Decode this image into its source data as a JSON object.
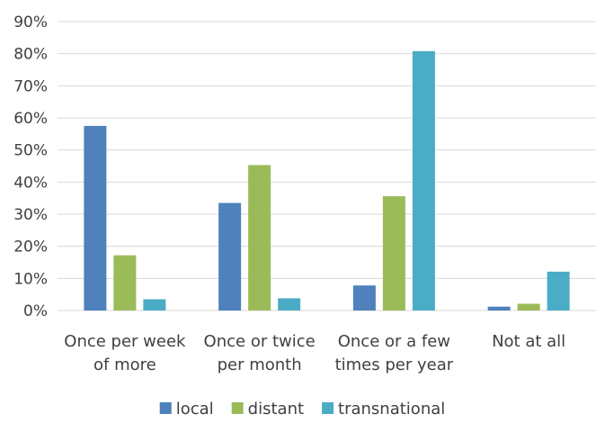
{
  "chart_data": {
    "type": "bar",
    "categories": [
      [
        "Once per week",
        "of more"
      ],
      [
        "Once or twice",
        "per month"
      ],
      [
        "Once or a few",
        "times per year"
      ],
      [
        "Not at all"
      ]
    ],
    "series": [
      {
        "name": "local",
        "color": "#4F81BD",
        "values": [
          57.5,
          33.5,
          7.8,
          1.2
        ]
      },
      {
        "name": "distant",
        "color": "#9BBB59",
        "values": [
          17.2,
          45.3,
          35.6,
          2.1
        ]
      },
      {
        "name": "transnational",
        "color": "#4BACC6",
        "values": [
          3.5,
          3.8,
          80.8,
          12.1
        ]
      }
    ],
    "ylim": [
      0,
      90
    ],
    "yticks": [
      "0%",
      "10%",
      "20%",
      "30%",
      "40%",
      "50%",
      "60%",
      "70%",
      "80%",
      "90%"
    ],
    "grid": true,
    "legend": "bottom",
    "title": "",
    "xlabel": "",
    "ylabel": ""
  }
}
